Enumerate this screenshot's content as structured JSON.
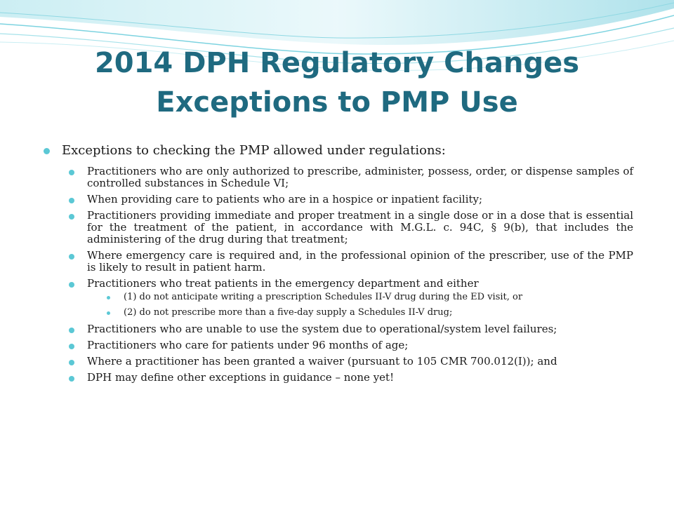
{
  "slide": {
    "title_line1": "2014 DPH Regulatory Changes",
    "title_line2": "Exceptions to PMP Use",
    "theme_colors": {
      "title": "#1f6a80",
      "bullet": "#5bc8d5",
      "wave": "#7dd3e0"
    },
    "main_point": "Exceptions to checking the PMP allowed under regulations:",
    "items": [
      {
        "text": "Practitioners who are only authorized to prescribe, administer, possess, order, or dispense samples of controlled substances in Schedule VI;"
      },
      {
        "text": "When providing care to patients who are in a hospice or inpatient facility;"
      },
      {
        "text": "Practitioners providing immediate and proper treatment in a single dose or in a dose that is essential for the treatment of the patient, in accordance with M.G.L. c. 94C, § 9(b), that includes the administering of the drug during that treatment;"
      },
      {
        "text": "Where emergency care is required and, in the professional opinion of the prescriber, use of the PMP is likely to result in patient harm."
      },
      {
        "text": "Practitioners who treat patients in the emergency department and either",
        "subitems": [
          "(1) do not anticipate writing a prescription Schedules II-V drug during the ED visit, or",
          "(2) do not prescribe more than a five-day supply a Schedules II-V drug;"
        ]
      },
      {
        "text": "Practitioners who are unable to use the system due to operational/system level failures;"
      },
      {
        "text": "Practitioners who care for patients under 96 months of age;"
      },
      {
        "text": "Where a practitioner has been granted a waiver (pursuant to 105 CMR 700.012(I)); and"
      },
      {
        "text": "DPH may define other exceptions in guidance – none yet!"
      }
    ]
  }
}
